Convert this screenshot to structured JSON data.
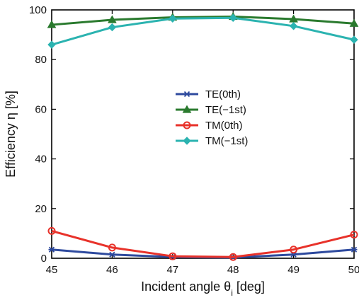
{
  "chart_data": {
    "type": "line",
    "title": "",
    "xlabel": "Incident angle θi [deg]",
    "xlabel_main": "Incident angle θ",
    "xlabel_sub": "i",
    "xlabel_unit": " [deg]",
    "ylabel": "Efficiency η [%]",
    "xlim": [
      45,
      50
    ],
    "ylim": [
      0,
      100
    ],
    "xticks": [
      45,
      46,
      47,
      48,
      49,
      50
    ],
    "yticks": [
      0,
      20,
      40,
      60,
      80,
      100
    ],
    "grid": false,
    "legend_position": "center",
    "x": [
      45,
      46,
      47,
      48,
      49,
      50
    ],
    "series": [
      {
        "name": "TE(0th)",
        "color": "#2e4a9e",
        "marker": "cross",
        "values": [
          3.5,
          1.5,
          0.5,
          0.3,
          1.5,
          3.5
        ]
      },
      {
        "name": "TE(−1st)",
        "color": "#2a7a2e",
        "marker": "triangle",
        "values": [
          94,
          96,
          97,
          97.3,
          96.3,
          94.5
        ]
      },
      {
        "name": "TM(0th)",
        "color": "#e8322a",
        "marker": "circle",
        "values": [
          11,
          4.3,
          0.8,
          0.5,
          3.5,
          9.5
        ]
      },
      {
        "name": "TM(−1st)",
        "color": "#2bb3b0",
        "marker": "diamond",
        "values": [
          86,
          93,
          96.5,
          96.8,
          93.5,
          88
        ]
      }
    ]
  }
}
